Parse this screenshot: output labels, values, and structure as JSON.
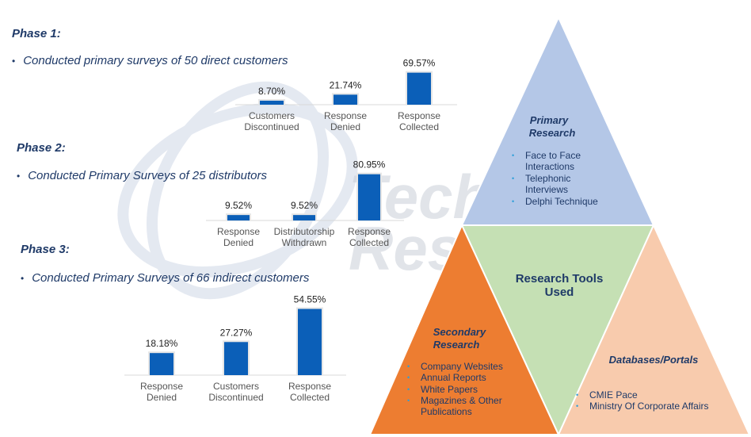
{
  "watermark": {
    "line1": "TechSci",
    "line2": "Research"
  },
  "phases": [
    {
      "title": "Phase 1:",
      "bullet": "Conducted primary surveys of 50 direct customers"
    },
    {
      "title": "Phase 2:",
      "bullet": "Conducted Primary Surveys of 25 distributors"
    },
    {
      "title": "Phase 3:",
      "bullet": "Conducted Primary Surveys of 66 indirect customers"
    }
  ],
  "chart_data": [
    {
      "type": "bar",
      "categories": [
        [
          "Customers",
          "Discontinued"
        ],
        [
          "Response",
          "Denied"
        ],
        [
          "Response",
          "Collected"
        ]
      ],
      "values": [
        8.7,
        21.74,
        69.57
      ],
      "labels": [
        "8.70%",
        "21.74%",
        "69.57%"
      ],
      "ylim": [
        0,
        100
      ]
    },
    {
      "type": "bar",
      "categories": [
        [
          "Response",
          "Denied"
        ],
        [
          "Distributorship",
          "Withdrawn"
        ],
        [
          "Response",
          "Collected"
        ]
      ],
      "values": [
        9.52,
        9.52,
        80.95
      ],
      "labels": [
        "9.52%",
        "9.52%",
        "80.95%"
      ],
      "ylim": [
        0,
        100
      ]
    },
    {
      "type": "bar",
      "categories": [
        [
          "Response",
          "Denied"
        ],
        [
          "Customers",
          "Discontinued"
        ],
        [
          "Response",
          "Collected"
        ]
      ],
      "values": [
        18.18,
        27.27,
        54.55
      ],
      "labels": [
        "18.18%",
        "27.27%",
        "54.55%"
      ],
      "ylim": [
        0,
        100
      ]
    }
  ],
  "colors": {
    "bar": "#0b5fb8",
    "primary": "#b4c7e7",
    "center": "#c5e0b4",
    "secondary": "#ed7d31",
    "databases": "#f8cbad",
    "title_text": "#1f3a68",
    "bullet_dot": "#2e9fd8"
  },
  "diagram": {
    "primary": {
      "title": [
        "Primary",
        "Research"
      ],
      "items": [
        "Face to Face",
        "Interactions",
        "Telephonic",
        "Interviews",
        "Delphi Technique"
      ]
    },
    "center": {
      "title": [
        "Research Tools",
        "Used"
      ]
    },
    "secondary": {
      "title": [
        "Secondary",
        "Research"
      ],
      "items": [
        "Company Websites",
        "Annual Reports",
        "White Papers",
        "Magazines & Other",
        "Publications"
      ]
    },
    "databases": {
      "title": "Databases/Portals",
      "items": [
        "CMIE Pace",
        "Ministry Of Corporate Affairs"
      ]
    }
  }
}
